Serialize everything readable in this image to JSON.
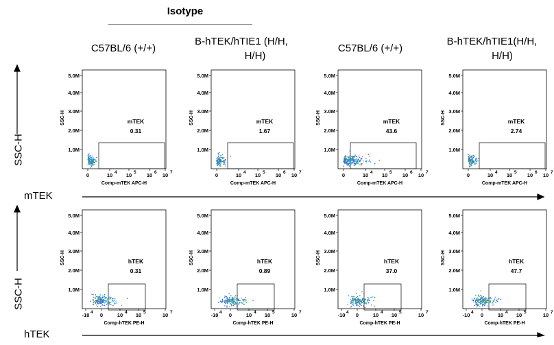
{
  "header": {
    "isotype": "Isotype",
    "col_titles": [
      [
        "C57BL/6 (+/+)"
      ],
      [
        "B-hTEK/hTIE1 (H/H,",
        "H/H)"
      ],
      [
        "C57BL/6 (+/+)"
      ],
      [
        "B-hTEK/hTIE1(H/H,",
        "H/H)"
      ]
    ]
  },
  "rows": {
    "row1": {
      "marker": "mTEK",
      "ylabel": "SSC-H"
    },
    "row2": {
      "marker": "hTEK",
      "ylabel": "SSC-H"
    }
  },
  "colors": {
    "dots_blue": "#3d6fd6",
    "dots_green": "#3aa34a",
    "dots_cyan": "#2ec4d6",
    "gate": "#000000"
  },
  "chart_data": [
    {
      "type": "scatter",
      "row": 1,
      "col": 1,
      "gate_label": "mTEK",
      "gate_value": "0.31",
      "xlabel": "Comp-mTEK APC-H",
      "ylabel": "SSC-H",
      "x_ticks": [
        "0",
        "10",
        "10",
        "10",
        "10"
      ],
      "x_tick_exp": [
        "",
        "4",
        "5",
        "6",
        "7"
      ],
      "y_ticks": [
        "5.0M",
        "4.0M",
        "3.0M",
        "2.0M",
        "1.0M"
      ]
    },
    {
      "type": "scatter",
      "row": 1,
      "col": 2,
      "gate_label": "mTEK",
      "gate_value": "1.67",
      "xlabel": "Comp-mTEK APC-H",
      "ylabel": "SSC-H",
      "x_ticks": [
        "0",
        "10",
        "10",
        "10",
        "10"
      ],
      "x_tick_exp": [
        "",
        "4",
        "5",
        "6",
        "7"
      ],
      "y_ticks": [
        "5.0M",
        "4.0M",
        "3.0M",
        "2.0M",
        "1.0M"
      ]
    },
    {
      "type": "scatter",
      "row": 1,
      "col": 3,
      "gate_label": "mTEK",
      "gate_value": "43.6",
      "xlabel": "Comp-mTEK APC-H",
      "ylabel": "SSC-H",
      "x_ticks": [
        "0",
        "10",
        "10",
        "10",
        "10"
      ],
      "x_tick_exp": [
        "",
        "4",
        "5",
        "6",
        "7"
      ],
      "y_ticks": [
        "5.0M",
        "4.0M",
        "3.0M",
        "2.0M",
        "1.0M"
      ]
    },
    {
      "type": "scatter",
      "row": 1,
      "col": 4,
      "gate_label": "mTEK",
      "gate_value": "2.74",
      "xlabel": "Comp-mTEK APC-H",
      "ylabel": "SSC-H",
      "x_ticks": [
        "0",
        "10",
        "10",
        "10",
        "10"
      ],
      "x_tick_exp": [
        "",
        "4",
        "5",
        "6",
        "7"
      ],
      "y_ticks": [
        "5.0M",
        "4.0M",
        "3.0M",
        "2.0M",
        "1.0M"
      ]
    },
    {
      "type": "scatter",
      "row": 2,
      "col": 1,
      "gate_label": "hTEK",
      "gate_value": "0.31",
      "xlabel": "Comp-hTEK PE-H",
      "ylabel": "SSC-H",
      "x_ticks": [
        "-10",
        "0",
        "10",
        "10",
        "10"
      ],
      "x_tick_exp": [
        "4",
        "",
        "4",
        "5",
        "7"
      ],
      "y_ticks": [
        "5.0M",
        "4.0M",
        "3.0M",
        "2.0M",
        "1.0M"
      ]
    },
    {
      "type": "scatter",
      "row": 2,
      "col": 2,
      "gate_label": "hTEK",
      "gate_value": "0.89",
      "xlabel": "Comp-hTEK PE-H",
      "ylabel": "SSC-H",
      "x_ticks": [
        "-10",
        "0",
        "10",
        "10",
        "10"
      ],
      "x_tick_exp": [
        "4",
        "",
        "4",
        "5",
        "7"
      ],
      "y_ticks": [
        "5.0M",
        "4.0M",
        "3.0M",
        "2.0M",
        "1.0M"
      ]
    },
    {
      "type": "scatter",
      "row": 2,
      "col": 3,
      "gate_label": "hTEK",
      "gate_value": "37.0",
      "xlabel": "Comp-hTEK PE-H",
      "ylabel": "SSC-H",
      "x_ticks": [
        "-10",
        "0",
        "10",
        "10",
        "10"
      ],
      "x_tick_exp": [
        "4",
        "",
        "4",
        "5",
        "7"
      ],
      "y_ticks": [
        "5.0M",
        "4.0M",
        "3.0M",
        "2.0M",
        "1.0M"
      ]
    },
    {
      "type": "scatter",
      "row": 2,
      "col": 4,
      "gate_label": "hTEK",
      "gate_value": "47.7",
      "xlabel": "Comp-hTEK PE-H",
      "ylabel": "SSC-H",
      "x_ticks": [
        "-10",
        "0",
        "10",
        "10",
        "10"
      ],
      "x_tick_exp": [
        "4",
        "",
        "4",
        "5",
        "7"
      ],
      "y_ticks": [
        "5.0M",
        "4.0M",
        "3.0M",
        "2.0M",
        "1.0M"
      ]
    }
  ]
}
